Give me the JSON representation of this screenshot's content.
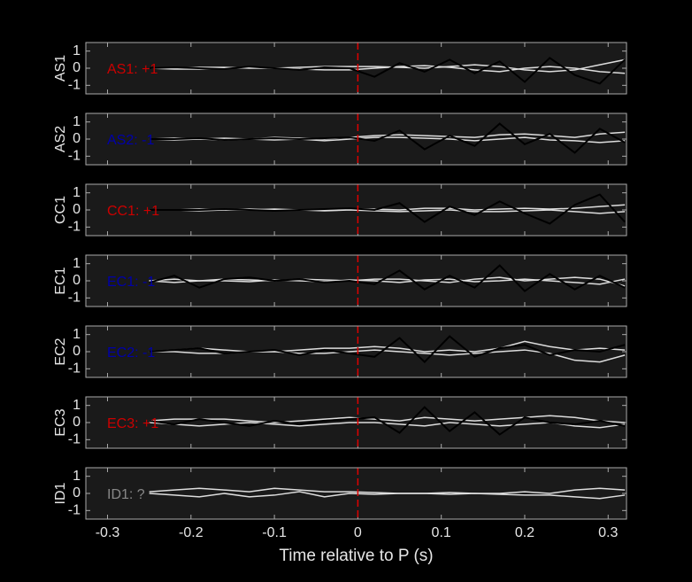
{
  "chart_data": [
    {
      "type": "line",
      "ylabel": "AS1",
      "annotation": {
        "text": "AS1: +1",
        "color": "#cc0000"
      },
      "xlim": [
        -0.326,
        0.322
      ],
      "ylim": [
        -1.5,
        1.5
      ],
      "xticks": [
        -0.3,
        -0.2,
        -0.1,
        0,
        0.1,
        0.2,
        0.3
      ],
      "yticks": [
        -1,
        0,
        1
      ],
      "vline": 0,
      "vline_color": "#dd0000",
      "x": [
        -0.25,
        -0.22,
        -0.19,
        -0.16,
        -0.13,
        -0.1,
        -0.07,
        -0.04,
        -0.01,
        0.02,
        0.05,
        0.08,
        0.11,
        0.14,
        0.17,
        0.2,
        0.23,
        0.26,
        0.29,
        0.32
      ],
      "series": [
        {
          "color": "#dddddd",
          "values": [
            0,
            0,
            0.05,
            0.05,
            0,
            0,
            0.05,
            0.1,
            0.1,
            0.1,
            0.05,
            0,
            0.1,
            0.2,
            0.1,
            -0.1,
            -0.2,
            -0.1,
            0.2,
            0.5
          ]
        },
        {
          "color": "#dddddd",
          "values": [
            0,
            -0.05,
            -0.05,
            0,
            0.05,
            0,
            -0.05,
            -0.1,
            -0.1,
            0,
            0.1,
            0.15,
            0.05,
            -0.1,
            -0.2,
            0,
            0.1,
            0,
            -0.2,
            -0.3
          ]
        },
        {
          "color": "#000000",
          "values": [
            0,
            0.05,
            0,
            -0.05,
            0.1,
            0,
            -0.1,
            0.05,
            0,
            -0.5,
            0.3,
            -0.2,
            0.5,
            -0.3,
            0.4,
            -0.8,
            0.6,
            -0.4,
            -0.9,
            0.5
          ]
        }
      ]
    },
    {
      "type": "line",
      "ylabel": "AS2",
      "annotation": {
        "text": "AS2: -1",
        "color": "#0000aa"
      },
      "xlim": [
        -0.326,
        0.322
      ],
      "ylim": [
        -1.5,
        1.5
      ],
      "xticks": [
        -0.3,
        -0.2,
        -0.1,
        0,
        0.1,
        0.2,
        0.3
      ],
      "yticks": [
        -1,
        0,
        1
      ],
      "vline": 0,
      "vline_color": "#dd0000",
      "x": [
        -0.25,
        -0.22,
        -0.19,
        -0.16,
        -0.13,
        -0.1,
        -0.07,
        -0.04,
        -0.01,
        0.02,
        0.05,
        0.08,
        0.11,
        0.14,
        0.17,
        0.2,
        0.23,
        0.26,
        0.29,
        0.32
      ],
      "series": [
        {
          "color": "#dddddd",
          "values": [
            0,
            0.05,
            0,
            -0.05,
            0,
            0.1,
            0.05,
            0,
            0.1,
            0.2,
            0.25,
            0.2,
            0.15,
            0.1,
            0.25,
            0.3,
            0.2,
            0.1,
            0.3,
            0.4
          ]
        },
        {
          "color": "#dddddd",
          "values": [
            0,
            -0.05,
            0,
            0.05,
            0,
            -0.05,
            0,
            -0.1,
            0,
            0.1,
            0.1,
            0.05,
            0,
            -0.1,
            0,
            0.1,
            -0.05,
            -0.1,
            -0.2,
            -0.1
          ]
        },
        {
          "color": "#000000",
          "values": [
            0,
            0,
            0.05,
            -0.05,
            0,
            0.05,
            0,
            0.05,
            0.1,
            -0.1,
            0.5,
            -0.6,
            0.2,
            -0.4,
            0.9,
            -0.3,
            0.3,
            -0.8,
            0.6,
            -0.2
          ]
        }
      ]
    },
    {
      "type": "line",
      "ylabel": "CC1",
      "annotation": {
        "text": "CC1: +1",
        "color": "#cc0000"
      },
      "xlim": [
        -0.326,
        0.322
      ],
      "ylim": [
        -1.5,
        1.5
      ],
      "xticks": [
        -0.3,
        -0.2,
        -0.1,
        0,
        0.1,
        0.2,
        0.3
      ],
      "yticks": [
        -1,
        0,
        1
      ],
      "vline": 0,
      "vline_color": "#dd0000",
      "x": [
        -0.25,
        -0.22,
        -0.19,
        -0.16,
        -0.13,
        -0.1,
        -0.07,
        -0.04,
        -0.01,
        0.02,
        0.05,
        0.08,
        0.11,
        0.14,
        0.17,
        0.2,
        0.23,
        0.26,
        0.29,
        0.32
      ],
      "series": [
        {
          "color": "#dddddd",
          "values": [
            0,
            0,
            0.05,
            0,
            0,
            0.05,
            0,
            0,
            0.05,
            0.05,
            0,
            0.1,
            0.1,
            0,
            0.05,
            0.1,
            0.05,
            0.1,
            0.2,
            0.3
          ]
        },
        {
          "color": "#dddddd",
          "values": [
            0,
            0,
            -0.05,
            0,
            0.05,
            0,
            0,
            -0.05,
            0,
            -0.05,
            -0.1,
            -0.05,
            0,
            -0.1,
            -0.1,
            -0.05,
            0,
            -0.1,
            -0.2,
            -0.1
          ]
        },
        {
          "color": "#000000",
          "values": [
            0,
            0,
            0,
            0.05,
            0,
            -0.05,
            0,
            0.05,
            0.1,
            0,
            0.4,
            -0.7,
            0.2,
            -0.3,
            0.5,
            -0.2,
            -0.8,
            0.3,
            0.9,
            -0.7
          ]
        }
      ]
    },
    {
      "type": "line",
      "ylabel": "EC1",
      "annotation": {
        "text": "EC1: -1",
        "color": "#0000aa"
      },
      "xlim": [
        -0.326,
        0.322
      ],
      "ylim": [
        -1.5,
        1.5
      ],
      "xticks": [
        -0.3,
        -0.2,
        -0.1,
        0,
        0.1,
        0.2,
        0.3
      ],
      "yticks": [
        -1,
        0,
        1
      ],
      "vline": 0,
      "vline_color": "#dd0000",
      "x": [
        -0.25,
        -0.22,
        -0.19,
        -0.16,
        -0.13,
        -0.1,
        -0.07,
        -0.04,
        -0.01,
        0.02,
        0.05,
        0.08,
        0.11,
        0.14,
        0.17,
        0.2,
        0.23,
        0.26,
        0.29,
        0.32
      ],
      "series": [
        {
          "color": "#dddddd",
          "values": [
            0,
            0.1,
            0,
            0.1,
            0.05,
            0,
            0.1,
            0.05,
            0,
            0.1,
            0.1,
            0,
            -0.1,
            0.1,
            0.2,
            0,
            0.1,
            0.2,
            0.1,
            -0.3
          ]
        },
        {
          "color": "#dddddd",
          "values": [
            0,
            -0.1,
            0,
            0,
            -0.05,
            0.05,
            0,
            -0.05,
            0.05,
            0,
            -0.1,
            0.05,
            0.1,
            -0.05,
            0,
            0.1,
            0,
            -0.1,
            -0.2,
            0.1
          ]
        },
        {
          "color": "#000000",
          "values": [
            -0.1,
            0.3,
            -0.4,
            0.1,
            0.2,
            0,
            0.1,
            -0.1,
            0,
            -0.2,
            0.6,
            -0.5,
            0.3,
            -0.4,
            0.9,
            -0.6,
            0.4,
            -0.5,
            0.3,
            -0.4
          ]
        }
      ]
    },
    {
      "type": "line",
      "ylabel": "EC2",
      "annotation": {
        "text": "EC2: -1",
        "color": "#0000aa"
      },
      "xlim": [
        -0.326,
        0.322
      ],
      "ylim": [
        -1.5,
        1.5
      ],
      "xticks": [
        -0.3,
        -0.2,
        -0.1,
        0,
        0.1,
        0.2,
        0.3
      ],
      "yticks": [
        -1,
        0,
        1
      ],
      "vline": 0,
      "vline_color": "#dd0000",
      "x": [
        -0.25,
        -0.22,
        -0.19,
        -0.16,
        -0.13,
        -0.1,
        -0.07,
        -0.04,
        -0.01,
        0.02,
        0.05,
        0.08,
        0.11,
        0.14,
        0.17,
        0.2,
        0.23,
        0.26,
        0.29,
        0.32
      ],
      "series": [
        {
          "color": "#dddddd",
          "values": [
            0,
            0.1,
            0.2,
            0.1,
            0,
            0,
            0.1,
            0.2,
            0.2,
            0.3,
            0.2,
            0,
            0.1,
            0,
            0.2,
            0.6,
            0.3,
            0.1,
            0.2,
            0.1
          ]
        },
        {
          "color": "#dddddd",
          "values": [
            0,
            0,
            -0.1,
            -0.1,
            0,
            0,
            -0.1,
            -0.1,
            0,
            0.1,
            0,
            -0.1,
            -0.2,
            -0.1,
            0,
            0.1,
            -0.1,
            -0.5,
            -0.6,
            -0.2
          ]
        },
        {
          "color": "#000000",
          "values": [
            0,
            0.1,
            0.2,
            -0.1,
            0,
            0.1,
            -0.2,
            0.1,
            -0.1,
            -0.3,
            0.8,
            -0.6,
            0.9,
            -0.3,
            0.2,
            0.4,
            -0.2,
            0.1,
            0,
            0.4
          ]
        }
      ]
    },
    {
      "type": "line",
      "ylabel": "EC3",
      "annotation": {
        "text": "EC3: +1",
        "color": "#cc0000"
      },
      "xlim": [
        -0.326,
        0.322
      ],
      "ylim": [
        -1.5,
        1.5
      ],
      "xticks": [
        -0.3,
        -0.2,
        -0.1,
        0,
        0.1,
        0.2,
        0.3
      ],
      "yticks": [
        -1,
        0,
        1
      ],
      "vline": 0,
      "vline_color": "#dd0000",
      "x": [
        -0.25,
        -0.22,
        -0.19,
        -0.16,
        -0.13,
        -0.1,
        -0.07,
        -0.04,
        -0.01,
        0.02,
        0.05,
        0.08,
        0.11,
        0.14,
        0.17,
        0.2,
        0.23,
        0.26,
        0.29,
        0.32
      ],
      "series": [
        {
          "color": "#dddddd",
          "values": [
            0.1,
            0.2,
            0.2,
            0.2,
            0.1,
            0,
            0.1,
            0.2,
            0.3,
            0.2,
            0.1,
            0.3,
            0.2,
            0.1,
            0.2,
            0.3,
            0.4,
            0.3,
            0.1,
            0
          ]
        },
        {
          "color": "#dddddd",
          "values": [
            0,
            -0.1,
            -0.2,
            -0.1,
            0,
            -0.1,
            -0.2,
            -0.1,
            0,
            0,
            -0.1,
            -0.2,
            0,
            -0.1,
            -0.2,
            -0.1,
            0,
            -0.2,
            -0.3,
            -0.1
          ]
        },
        {
          "color": "#000000",
          "values": [
            0.1,
            -0.1,
            0.2,
            0,
            -0.2,
            0.1,
            -0.1,
            0.1,
            0.2,
            0.3,
            -0.6,
            0.9,
            -0.5,
            0.6,
            -0.7,
            0.3,
            0,
            -0.1,
            0.1,
            -0.2
          ]
        }
      ]
    },
    {
      "type": "line",
      "ylabel": "ID1",
      "annotation": {
        "text": "ID1: ?",
        "color": "#888888"
      },
      "xlim": [
        -0.326,
        0.322
      ],
      "ylim": [
        -1.5,
        1.5
      ],
      "xticks": [
        -0.3,
        -0.2,
        -0.1,
        0,
        0.1,
        0.2,
        0.3
      ],
      "yticks": [
        -1,
        0,
        1
      ],
      "vline": 0,
      "vline_color": "#dd0000",
      "xlabel": "Time relative to P (s)",
      "x": [
        -0.25,
        -0.22,
        -0.19,
        -0.16,
        -0.13,
        -0.1,
        -0.07,
        -0.04,
        -0.01,
        0.02,
        0.05,
        0.08,
        0.11,
        0.14,
        0.17,
        0.2,
        0.23,
        0.26,
        0.29,
        0.32
      ],
      "series": [
        {
          "color": "#dddddd",
          "values": [
            0.1,
            0.2,
            0.3,
            0.2,
            0.1,
            0.3,
            0.2,
            0.1,
            0.1,
            0.05,
            0,
            0,
            0.05,
            0,
            0,
            0.1,
            0,
            0.2,
            0.3,
            0.2
          ]
        },
        {
          "color": "#dddddd",
          "values": [
            0,
            -0.1,
            -0.2,
            0,
            -0.2,
            -0.1,
            0.1,
            -0.2,
            0,
            -0.05,
            0,
            0,
            -0.05,
            0,
            -0.05,
            -0.1,
            -0.1,
            -0.2,
            -0.3,
            -0.1
          ]
        }
      ]
    }
  ]
}
